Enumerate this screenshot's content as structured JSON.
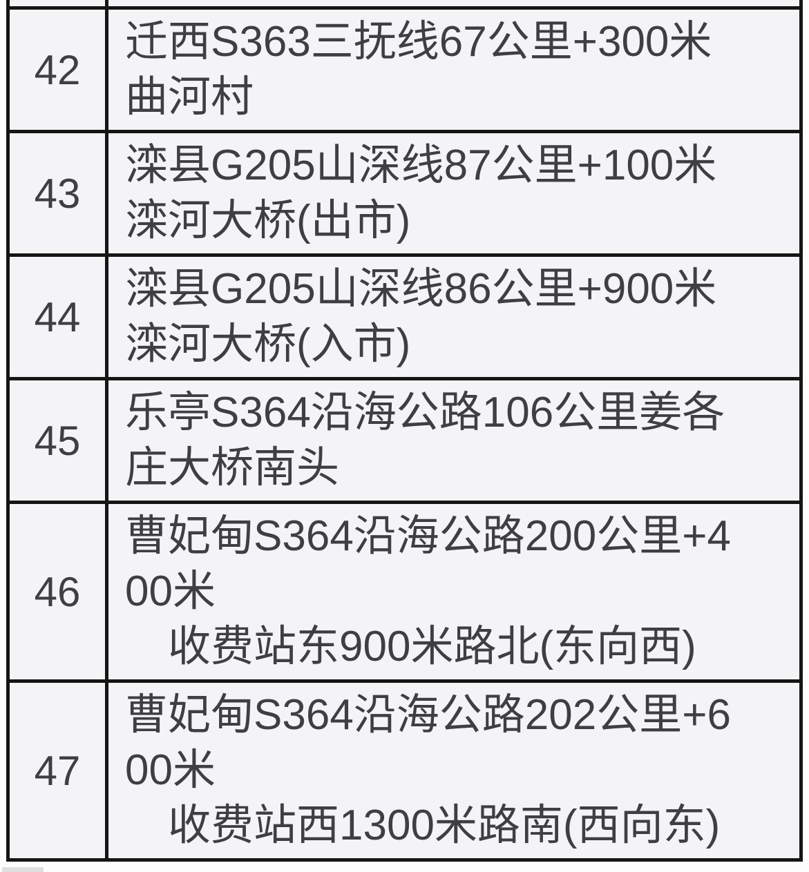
{
  "colors": {
    "cell_background": "#f4f4f6",
    "border": "#151515",
    "text": "#3e3e43",
    "page_background": "#fdfdfd",
    "bottom_strip": "#dfdfe1"
  },
  "table": {
    "rows": [
      {
        "number": "42",
        "lines": [
          "迁西S363三抚线67公里+300米",
          "曲河村"
        ]
      },
      {
        "number": "43",
        "lines": [
          "滦县G205山深线87公里+100米",
          "滦河大桥(出市)"
        ]
      },
      {
        "number": "44",
        "lines": [
          "滦县G205山深线86公里+900米",
          "滦河大桥(入市)"
        ]
      },
      {
        "number": "45",
        "lines": [
          "乐亭S364沿海公路106公里姜各",
          "庄大桥南头"
        ]
      },
      {
        "number": "46",
        "lines": [
          "曹妃甸S364沿海公路200公里+4",
          "00米",
          "　收费站东900米路北(东向西)"
        ]
      },
      {
        "number": "47",
        "lines": [
          "曹妃甸S364沿海公路202公里+6",
          "00米",
          "　收费站西1300米路南(西向东)"
        ]
      }
    ]
  }
}
